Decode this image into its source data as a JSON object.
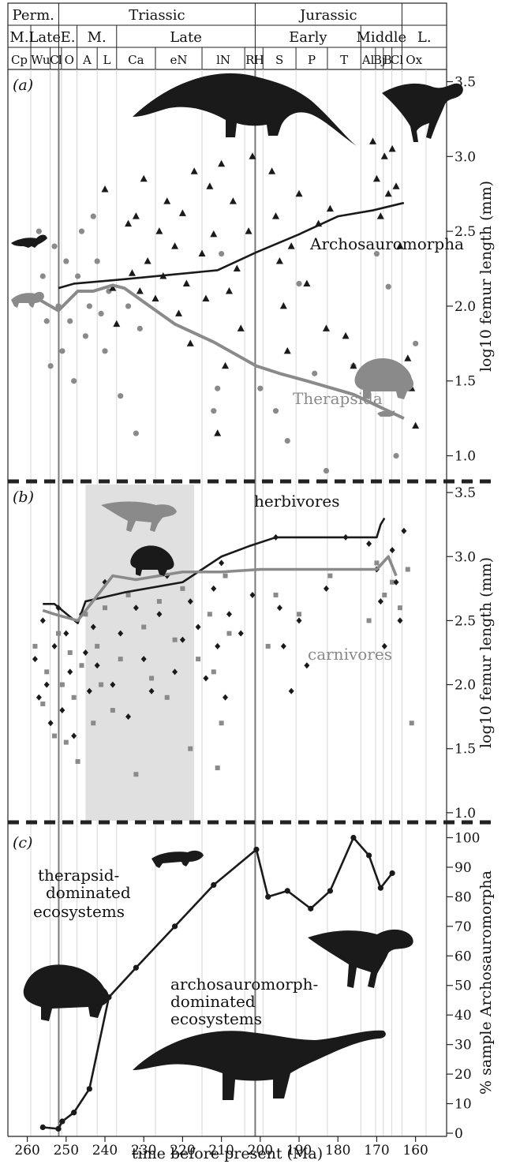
{
  "figure": {
    "x_axis_title": "time before present (Ma)",
    "x_ticks": [
      260,
      250,
      240,
      230,
      220,
      210,
      200,
      190,
      180,
      170,
      160
    ],
    "x_range": [
      265,
      152
    ],
    "colors": {
      "archosaur": "#1a1a1a",
      "therapsid": "#8a8a8a",
      "shade": "#e0e0e0",
      "boundary": "#7a7a7a"
    },
    "boundaries_ma": [
      251.9,
      201.3
    ],
    "periods": [
      {
        "label": "Perm.",
        "start": 265,
        "end": 251.9
      },
      {
        "label": "Triassic",
        "start": 251.9,
        "end": 201.3
      },
      {
        "label": "Jurassic",
        "start": 201.3,
        "end": 163.5
      },
      {
        "label": "",
        "start": 163.5,
        "end": 152
      }
    ],
    "epochs": [
      {
        "label": "M.",
        "start": 265,
        "end": 259.1
      },
      {
        "label": "Late",
        "start": 259.1,
        "end": 251.9
      },
      {
        "label": "E.",
        "start": 251.9,
        "end": 247.2
      },
      {
        "label": "M.",
        "start": 247.2,
        "end": 237
      },
      {
        "label": "Late",
        "start": 237,
        "end": 201.3
      },
      {
        "label": "Early",
        "start": 201.3,
        "end": 174.1
      },
      {
        "label": "Middle",
        "start": 174.1,
        "end": 163.5
      },
      {
        "label": "L.",
        "start": 163.5,
        "end": 152
      }
    ],
    "stages": [
      {
        "label": "Cp",
        "start": 265,
        "end": 259.1
      },
      {
        "label": "Wu",
        "start": 259.1,
        "end": 254.1
      },
      {
        "label": "C",
        "start": 254.1,
        "end": 251.9
      },
      {
        "label": "I",
        "start": 251.9,
        "end": 251.2
      },
      {
        "label": "O",
        "start": 251.2,
        "end": 247.2
      },
      {
        "label": "A",
        "start": 247.2,
        "end": 242
      },
      {
        "label": "L",
        "start": 242,
        "end": 237
      },
      {
        "label": "Ca",
        "start": 237,
        "end": 227
      },
      {
        "label": "eN",
        "start": 227,
        "end": 215
      },
      {
        "label": "lN",
        "start": 215,
        "end": 204
      },
      {
        "label": "R",
        "start": 204,
        "end": 201.3
      },
      {
        "label": "H",
        "start": 201.3,
        "end": 199.3
      },
      {
        "label": "S",
        "start": 199.3,
        "end": 190.8
      },
      {
        "label": "P",
        "start": 190.8,
        "end": 182.7
      },
      {
        "label": "T",
        "start": 182.7,
        "end": 174.1
      },
      {
        "label": "Al",
        "start": 174.1,
        "end": 170.3
      },
      {
        "label": "Bj",
        "start": 170.3,
        "end": 168.3
      },
      {
        "label": "B",
        "start": 168.3,
        "end": 166.1
      },
      {
        "label": "Cl",
        "start": 166.1,
        "end": 163.5
      },
      {
        "label": "Ox",
        "start": 163.5,
        "end": 157.3
      }
    ]
  },
  "panel_a": {
    "label": "(a)",
    "ylabel": "log10 femur length (mm)",
    "y_ticks": [
      1.0,
      1.5,
      2.0,
      2.5,
      3.0,
      3.5
    ],
    "ylim": [
      0.85,
      3.55
    ],
    "series": [
      {
        "name": "Archosauromorpha",
        "x": [
          252,
          248,
          235,
          211,
          201,
          190,
          180,
          171,
          163
        ],
        "y": [
          2.12,
          2.15,
          2.18,
          2.24,
          2.36,
          2.48,
          2.6,
          2.64,
          2.69
        ]
      },
      {
        "name": "Therapsida",
        "x": [
          258,
          252,
          247,
          243,
          238,
          235,
          222,
          212,
          201,
          195,
          188,
          176,
          163
        ],
        "y": [
          2.06,
          1.97,
          2.1,
          2.1,
          2.14,
          2.12,
          1.88,
          1.76,
          1.6,
          1.55,
          1.5,
          1.41,
          1.25
        ]
      }
    ],
    "archo_points": {
      "x": [
        240,
        238,
        237,
        234,
        233,
        232,
        231,
        230,
        229,
        227,
        226,
        225,
        224,
        222,
        221,
        220,
        219,
        218,
        217,
        215,
        214,
        213,
        212,
        211,
        210,
        209,
        208,
        207,
        206,
        205,
        203,
        202,
        197,
        196,
        195,
        194,
        193,
        192,
        190,
        188,
        185,
        183,
        182,
        178,
        176,
        171,
        170,
        169,
        168,
        167,
        166,
        165,
        164,
        162,
        161,
        160
      ],
      "y": [
        2.78,
        2.12,
        1.88,
        2.55,
        2.22,
        2.6,
        2.1,
        2.85,
        2.3,
        2.05,
        2.5,
        2.2,
        2.7,
        2.4,
        1.95,
        2.62,
        2.15,
        1.75,
        2.9,
        2.35,
        2.05,
        2.8,
        2.48,
        1.15,
        2.95,
        1.6,
        2.1,
        2.7,
        2.25,
        1.85,
        2.5,
        3.0,
        2.9,
        2.6,
        2.3,
        2.0,
        1.7,
        2.4,
        2.75,
        2.15,
        2.55,
        1.85,
        2.65,
        1.8,
        1.6,
        3.1,
        2.85,
        2.6,
        3.0,
        2.75,
        3.05,
        2.8,
        2.4,
        1.65,
        1.45,
        1.2
      ]
    },
    "thera_points": {
      "x": [
        257,
        256,
        255,
        254,
        253,
        252,
        251,
        250,
        249,
        248,
        247,
        246,
        245,
        244,
        243,
        242,
        241,
        240,
        239,
        236,
        234,
        232,
        231,
        212,
        211,
        210,
        200,
        196,
        193,
        190,
        186,
        183,
        176,
        170,
        167,
        165,
        162,
        160
      ],
      "y": [
        2.5,
        2.2,
        1.9,
        1.6,
        2.4,
        2.0,
        1.7,
        2.3,
        1.9,
        1.5,
        2.2,
        2.5,
        1.8,
        2.0,
        2.6,
        2.3,
        1.95,
        1.7,
        2.1,
        1.4,
        2.0,
        1.15,
        1.85,
        1.3,
        1.45,
        2.35,
        1.45,
        1.3,
        1.1,
        2.15,
        1.55,
        0.9,
        1.6,
        2.35,
        2.13,
        1.0,
        1.5,
        1.75
      ]
    },
    "annotations": {
      "archosaur_label": "Archosauromorpha",
      "therapsid_label": "Therapsida"
    }
  },
  "panel_b": {
    "label": "(b)",
    "ylabel": "log10 femur length (mm)",
    "y_ticks": [
      1.0,
      1.5,
      2.0,
      2.5,
      3.0,
      3.5
    ],
    "ylim": [
      0.95,
      3.55
    ],
    "shade_range_ma": [
      245,
      217
    ],
    "series": [
      {
        "name": "herbivores",
        "x": [
          256,
          253,
          247,
          245,
          235,
          220,
          210,
          203,
          196,
          183,
          177,
          170,
          169,
          168
        ],
        "y": [
          2.63,
          2.63,
          2.48,
          2.65,
          2.72,
          2.8,
          3.0,
          3.08,
          3.15,
          3.15,
          3.15,
          3.15,
          3.25,
          3.3
        ]
      },
      {
        "name": "carnivores",
        "x": [
          256,
          253,
          247,
          238,
          232,
          220,
          210,
          200,
          190,
          175,
          170,
          167,
          165
        ],
        "y": [
          2.58,
          2.55,
          2.5,
          2.85,
          2.82,
          2.88,
          2.88,
          2.9,
          2.9,
          2.9,
          2.9,
          3.0,
          2.85
        ]
      }
    ],
    "herb_points": {
      "x": [
        258,
        257,
        256,
        255,
        254,
        253,
        252,
        251,
        250,
        249,
        248,
        246,
        245,
        244,
        243,
        242,
        240,
        238,
        236,
        234,
        232,
        230,
        228,
        226,
        224,
        222,
        220,
        218,
        216,
        214,
        212,
        211,
        210,
        209,
        208,
        205,
        202,
        196,
        195,
        194,
        192,
        190,
        188,
        183,
        178,
        172,
        170,
        169,
        168,
        166,
        165,
        164,
        163
      ],
      "y": [
        2.2,
        1.9,
        2.5,
        2.0,
        1.7,
        2.3,
        2.6,
        1.8,
        2.4,
        2.1,
        1.6,
        2.55,
        2.25,
        1.95,
        2.45,
        2.15,
        2.8,
        2.0,
        2.4,
        1.75,
        2.6,
        2.2,
        1.95,
        2.55,
        2.85,
        2.1,
        2.35,
        2.65,
        2.45,
        2.05,
        2.75,
        2.3,
        2.95,
        1.9,
        2.55,
        2.4,
        2.7,
        3.15,
        2.6,
        2.3,
        1.95,
        2.5,
        2.15,
        2.75,
        3.15,
        3.1,
        2.9,
        2.65,
        2.3,
        3.05,
        2.8,
        2.5,
        3.2
      ]
    },
    "carn_points": {
      "x": [
        258,
        256,
        255,
        253,
        252,
        251,
        250,
        249,
        248,
        247,
        246,
        245,
        243,
        242,
        241,
        240,
        238,
        236,
        234,
        232,
        230,
        228,
        226,
        224,
        222,
        220,
        218,
        216,
        213,
        212,
        211,
        210,
        209,
        208,
        198,
        196,
        190,
        182,
        172,
        170,
        168,
        166,
        164,
        162,
        161
      ],
      "y": [
        2.3,
        1.85,
        2.1,
        1.6,
        2.4,
        2.0,
        1.55,
        2.25,
        1.9,
        1.4,
        2.15,
        2.55,
        1.7,
        2.3,
        2.0,
        2.6,
        1.8,
        2.2,
        2.7,
        1.3,
        2.45,
        2.05,
        2.65,
        1.9,
        2.35,
        2.75,
        1.5,
        2.2,
        2.55,
        2.1,
        1.35,
        1.7,
        2.85,
        2.4,
        2.3,
        2.7,
        2.55,
        2.85,
        2.5,
        2.95,
        2.7,
        2.8,
        2.6,
        2.9,
        1.7
      ]
    },
    "annotations": {
      "herbivore_label": "herbivores",
      "carnivore_label": "carnivores"
    }
  },
  "panel_c": {
    "label": "(c)",
    "ylabel": "% sample Archosauromorpha",
    "y_ticks": [
      0,
      10,
      20,
      30,
      40,
      50,
      60,
      70,
      80,
      90,
      100
    ],
    "ylim": [
      0,
      102
    ],
    "series": [
      {
        "name": "",
        "x": [
          256,
          252,
          251,
          248,
          244,
          239,
          232,
          222,
          212,
          201,
          198,
          193,
          187,
          182,
          176,
          172,
          169,
          166
        ],
        "y": [
          2,
          1.5,
          4,
          7,
          15,
          46,
          56,
          70,
          84,
          96,
          80,
          82,
          76,
          82,
          100,
          94,
          83,
          88
        ]
      }
    ],
    "annotations": {
      "therapsid_line1": "therapsid-",
      "therapsid_line2": "dominated",
      "therapsid_line3": "ecosystems",
      "archo_line1": "archosauromorph-",
      "archo_line2": "dominated",
      "archo_line3": "ecosystems"
    }
  }
}
